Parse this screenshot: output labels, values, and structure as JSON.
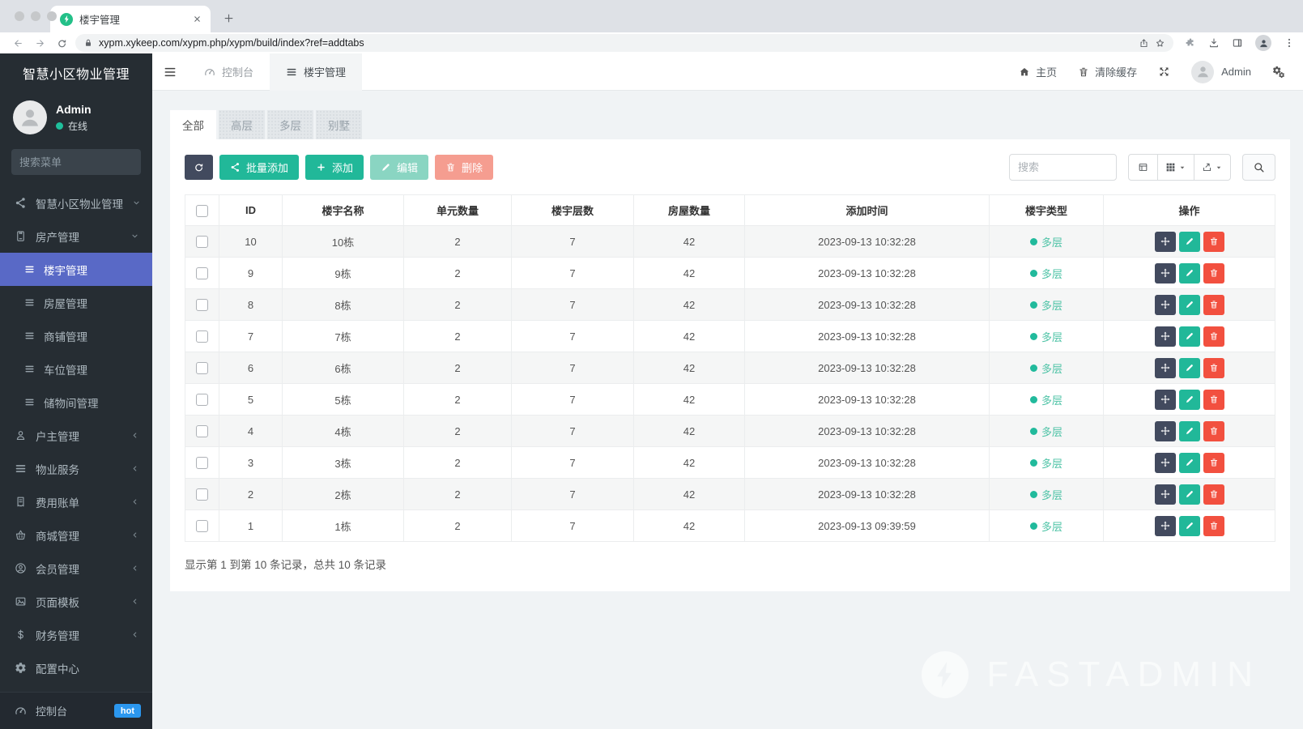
{
  "browser": {
    "tab_title": "楼宇管理",
    "url": "xypm.xykeep.com/xypm.php/xypm/build/index?ref=addtabs"
  },
  "sidebar": {
    "brand": "智慧小区物业管理",
    "user": {
      "name": "Admin",
      "status": "在线"
    },
    "search_placeholder": "搜索菜单",
    "menu": [
      {
        "label": "智慧小区物业管理",
        "icon": "nodes-icon",
        "chevron": "down"
      },
      {
        "label": "房产管理",
        "icon": "building-icon",
        "chevron": "down",
        "children": [
          {
            "label": "楼宇管理",
            "active": true
          },
          {
            "label": "房屋管理"
          },
          {
            "label": "商铺管理"
          },
          {
            "label": "车位管理"
          },
          {
            "label": "储物间管理"
          }
        ]
      },
      {
        "label": "户主管理",
        "icon": "user-icon",
        "chevron": "left"
      },
      {
        "label": "物业服务",
        "icon": "list-icon",
        "chevron": "left"
      },
      {
        "label": "费用账单",
        "icon": "bill-icon",
        "chevron": "left"
      },
      {
        "label": "商城管理",
        "icon": "basket-icon",
        "chevron": "left"
      },
      {
        "label": "会员管理",
        "icon": "member-icon",
        "chevron": "left"
      },
      {
        "label": "页面模板",
        "icon": "image-icon",
        "chevron": "left"
      },
      {
        "label": "财务管理",
        "icon": "dollar-icon",
        "chevron": "left"
      },
      {
        "label": "配置中心",
        "icon": "gear-icon"
      }
    ],
    "footer": {
      "label": "控制台",
      "icon": "gauge-icon",
      "badge": "hot"
    }
  },
  "navbar": {
    "tabs": [
      {
        "label": "控制台",
        "icon": "gauge-icon",
        "active": false
      },
      {
        "label": "楼宇管理",
        "icon": "list-icon",
        "active": true
      }
    ],
    "home": "主页",
    "clear_cache": "清除缓存",
    "user": "Admin"
  },
  "content": {
    "tabs": [
      {
        "label": "全部",
        "active": true
      },
      {
        "label": "高层",
        "active": false
      },
      {
        "label": "多层",
        "active": false
      },
      {
        "label": "别墅",
        "active": false
      }
    ],
    "toolbar": {
      "batch_add": "批量添加",
      "add": "添加",
      "edit": "编辑",
      "delete": "删除",
      "search_placeholder": "搜索"
    },
    "table": {
      "columns": [
        "ID",
        "楼宇名称",
        "单元数量",
        "楼宇层数",
        "房屋数量",
        "添加时间",
        "楼宇类型",
        "操作"
      ],
      "rows": [
        {
          "id": "10",
          "name": "10栋",
          "units": "2",
          "floors": "7",
          "houses": "42",
          "time": "2023-09-13 10:32:28",
          "type": "多层"
        },
        {
          "id": "9",
          "name": "9栋",
          "units": "2",
          "floors": "7",
          "houses": "42",
          "time": "2023-09-13 10:32:28",
          "type": "多层"
        },
        {
          "id": "8",
          "name": "8栋",
          "units": "2",
          "floors": "7",
          "houses": "42",
          "time": "2023-09-13 10:32:28",
          "type": "多层"
        },
        {
          "id": "7",
          "name": "7栋",
          "units": "2",
          "floors": "7",
          "houses": "42",
          "time": "2023-09-13 10:32:28",
          "type": "多层"
        },
        {
          "id": "6",
          "name": "6栋",
          "units": "2",
          "floors": "7",
          "houses": "42",
          "time": "2023-09-13 10:32:28",
          "type": "多层"
        },
        {
          "id": "5",
          "name": "5栋",
          "units": "2",
          "floors": "7",
          "houses": "42",
          "time": "2023-09-13 10:32:28",
          "type": "多层"
        },
        {
          "id": "4",
          "name": "4栋",
          "units": "2",
          "floors": "7",
          "houses": "42",
          "time": "2023-09-13 10:32:28",
          "type": "多层"
        },
        {
          "id": "3",
          "name": "3栋",
          "units": "2",
          "floors": "7",
          "houses": "42",
          "time": "2023-09-13 10:32:28",
          "type": "多层"
        },
        {
          "id": "2",
          "name": "2栋",
          "units": "2",
          "floors": "7",
          "houses": "42",
          "time": "2023-09-13 10:32:28",
          "type": "多层"
        },
        {
          "id": "1",
          "name": "1栋",
          "units": "2",
          "floors": "7",
          "houses": "42",
          "time": "2023-09-13 09:39:59",
          "type": "多层"
        }
      ]
    },
    "summary": "显示第 1 到第 10 条记录，总共 10 条记录"
  },
  "watermark": "FASTADMIN",
  "colors": {
    "success_green": "#21b899",
    "danger_red": "#f2503f",
    "dark_button": "#424a5e",
    "active_menu_blue": "#5969c6",
    "hot_badge_blue": "#2b97ef",
    "type_dot_green": "#21ba9c",
    "sidebar_bg": "#262d33",
    "content_bg": "#f0f3f5"
  }
}
